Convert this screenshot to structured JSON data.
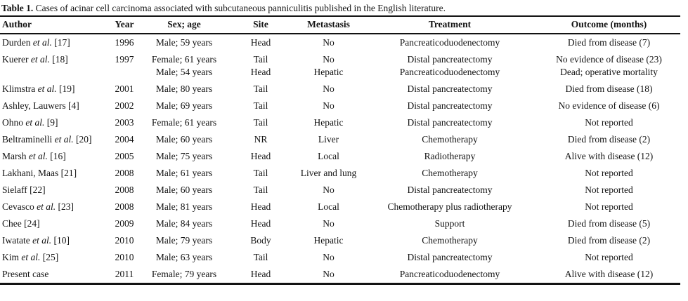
{
  "table": {
    "title_bold": "Table 1.",
    "title_rest": " Cases of acinar cell carcinoma associated with subcutaneous panniculitis published in the English literature.",
    "columns": {
      "author": "Author",
      "year": "Year",
      "sex_age": "Sex; age",
      "site": "Site",
      "metastasis": "Metastasis",
      "treatment": "Treatment",
      "outcome": "Outcome (months)"
    },
    "rows": [
      {
        "author_pre": "Durden ",
        "author_it": "et al.",
        "author_post": " [17]",
        "year": "1996",
        "sex_age": "Male; 59 years",
        "site": "Head",
        "metastasis": "No",
        "treatment": "Pancreaticoduodenectomy",
        "outcome": "Died from disease (7)"
      },
      {
        "author_pre": "Kuerer ",
        "author_it": "et al.",
        "author_post": " [18]",
        "year": "1997",
        "sex_age": "Female; 61 years",
        "site": "Tail",
        "metastasis": "No",
        "treatment": "Distal pancreatectomy",
        "outcome": "No evidence of disease (23)"
      },
      {
        "author_pre": "",
        "author_it": "",
        "author_post": "",
        "year": "",
        "sex_age": "Male; 54 years",
        "site": "Head",
        "metastasis": "Hepatic",
        "treatment": "Pancreaticoduodenectomy",
        "outcome": "Dead; operative mortality"
      },
      {
        "author_pre": "Klimstra ",
        "author_it": "et al.",
        "author_post": " [19]",
        "year": "2001",
        "sex_age": "Male; 80 years",
        "site": "Tail",
        "metastasis": "No",
        "treatment": "Distal pancreatectomy",
        "outcome": "Died from disease (18)"
      },
      {
        "author_pre": "Ashley, Lauwers [4]",
        "author_it": "",
        "author_post": "",
        "year": "2002",
        "sex_age": "Male; 69 years",
        "site": "Tail",
        "metastasis": "No",
        "treatment": "Distal pancreatectomy",
        "outcome": "No evidence of disease (6)"
      },
      {
        "author_pre": "Ohno ",
        "author_it": "et al.",
        "author_post": " [9]",
        "year": "2003",
        "sex_age": "Female; 61 years",
        "site": "Tail",
        "metastasis": "Hepatic",
        "treatment": "Distal pancreatectomy",
        "outcome": "Not reported"
      },
      {
        "author_pre": "Beltraminelli ",
        "author_it": "et al.",
        "author_post": " [20]",
        "year": "2004",
        "sex_age": "Male; 60 years",
        "site": "NR",
        "metastasis": "Liver",
        "treatment": "Chemotherapy",
        "outcome": "Died from disease (2)"
      },
      {
        "author_pre": "Marsh ",
        "author_it": "et al.",
        "author_post": " [16]",
        "year": "2005",
        "sex_age": "Male; 75 years",
        "site": "Head",
        "metastasis": "Local",
        "treatment": "Radiotherapy",
        "outcome": "Alive with disease (12)"
      },
      {
        "author_pre": "Lakhani, Maas [21]",
        "author_it": "",
        "author_post": "",
        "year": "2008",
        "sex_age": "Male; 61 years",
        "site": "Tail",
        "metastasis": "Liver and lung",
        "treatment": "Chemotherapy",
        "outcome": "Not reported"
      },
      {
        "author_pre": "Sielaff [22]",
        "author_it": "",
        "author_post": "",
        "year": "2008",
        "sex_age": "Male; 60 years",
        "site": "Tail",
        "metastasis": "No",
        "treatment": "Distal pancreatectomy",
        "outcome": "Not reported"
      },
      {
        "author_pre": "Cevasco ",
        "author_it": "et al.",
        "author_post": " [23]",
        "year": "2008",
        "sex_age": "Male; 81 years",
        "site": "Head",
        "metastasis": "Local",
        "treatment": "Chemotherapy plus radiotherapy",
        "outcome": "Not reported"
      },
      {
        "author_pre": "Chee [24]",
        "author_it": "",
        "author_post": "",
        "year": "2009",
        "sex_age": "Male; 84 years",
        "site": "Head",
        "metastasis": "No",
        "treatment": "Support",
        "outcome": "Died from disease (5)"
      },
      {
        "author_pre": "Iwatate ",
        "author_it": "et al.",
        "author_post": " [10]",
        "year": "2010",
        "sex_age": "Male; 79 years",
        "site": "Body",
        "metastasis": "Hepatic",
        "treatment": "Chemotherapy",
        "outcome": "Died from disease (2)"
      },
      {
        "author_pre": "Kim ",
        "author_it": "et al.",
        "author_post": " [25]",
        "year": "2010",
        "sex_age": "Male; 63 years",
        "site": "Tail",
        "metastasis": "No",
        "treatment": "Distal pancreatectomy",
        "outcome": "Not reported"
      },
      {
        "author_pre": "Present case",
        "author_it": "",
        "author_post": "",
        "year": "2011",
        "sex_age": "Female; 79 years",
        "site": "Head",
        "metastasis": "No",
        "treatment": "Pancreaticoduodenectomy",
        "outcome": "Alive with disease (12)"
      }
    ]
  }
}
